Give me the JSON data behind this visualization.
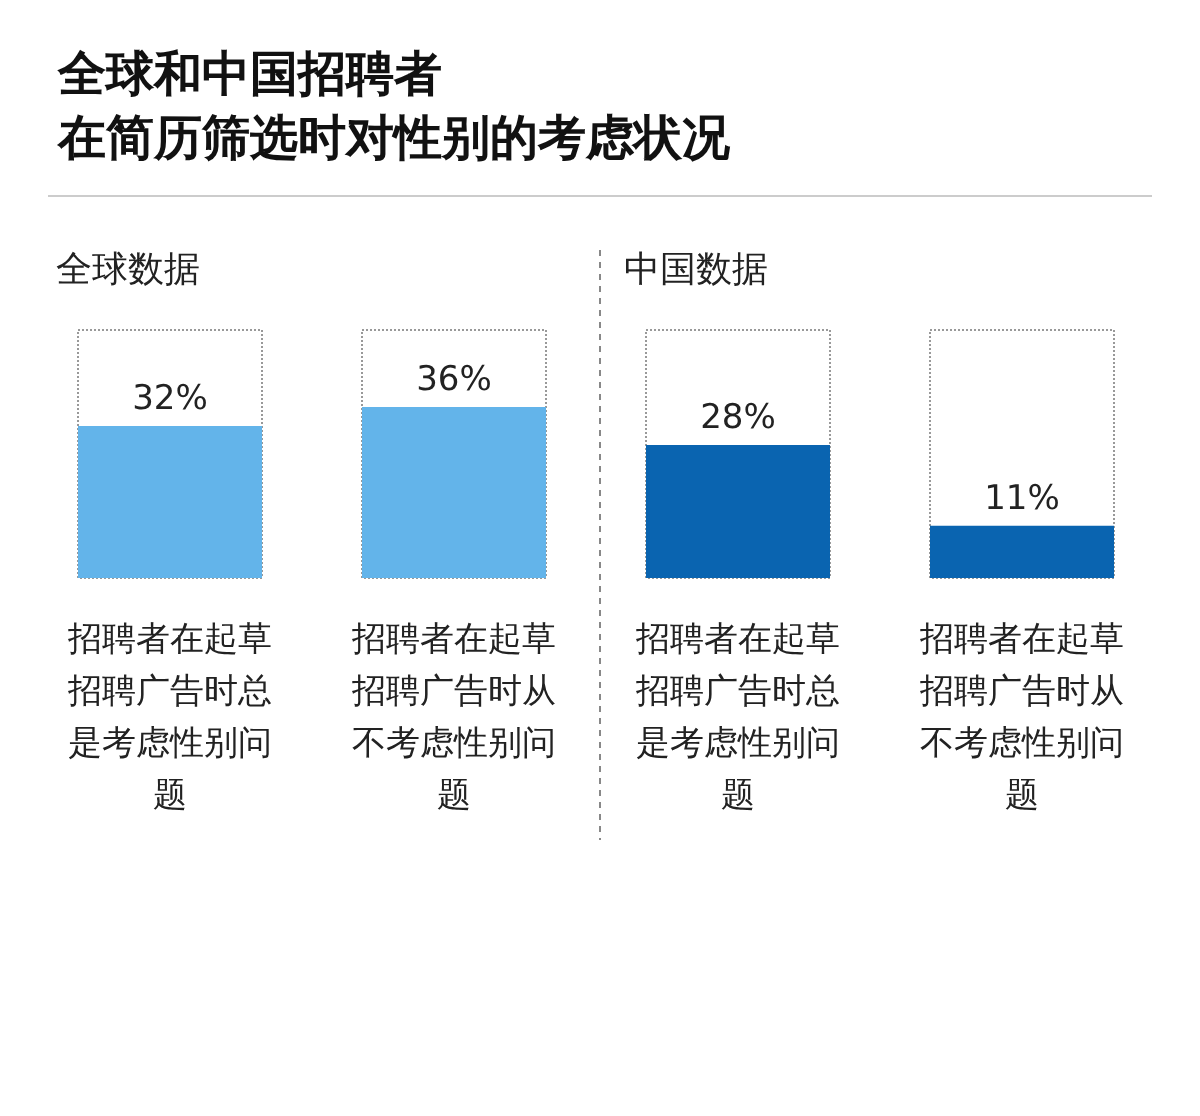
{
  "chart_data": {
    "type": "bar",
    "title": "全球和中国招聘者",
    "subtitle": "在简历筛选时对性别的考虑状况",
    "categories": [
      "招聘者在起草招聘广告时总是考虑性别问题",
      "招聘者在起草招聘广告时从不考虑性别问题",
      "招聘者在起草招聘广告时总是考虑性别问题",
      "招聘者在起草招聘广告时从不考虑性别问题"
    ],
    "values": [
      32,
      36,
      28,
      11
    ],
    "colors": [
      "#63b4ea",
      "#63b4ea",
      "#0a64b0",
      "#0a64b0"
    ],
    "value_labels": [
      "32%",
      "36%",
      "28%",
      "11%"
    ],
    "annotations": [
      "全球数据",
      "中国数据"
    ]
  }
}
